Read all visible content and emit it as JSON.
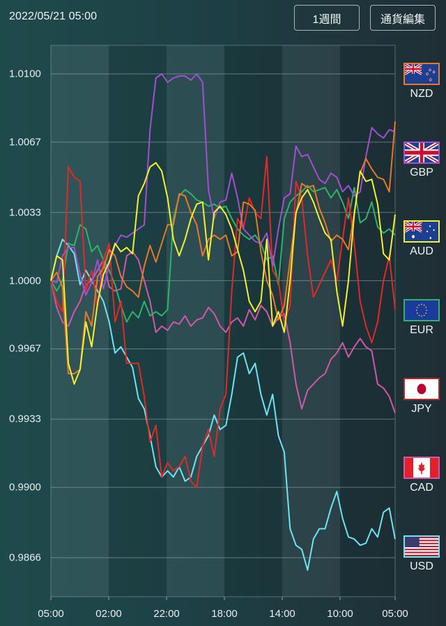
{
  "header": {
    "datetime": "2022/05/21 05:00",
    "period_button": "1週間",
    "edit_button": "通貨編集"
  },
  "legend": [
    {
      "code": "NZD",
      "color": "#e8782a",
      "flag": "nz-flag-icon"
    },
    {
      "code": "GBP",
      "color": "#a24fd0",
      "flag": "uk-flag-icon"
    },
    {
      "code": "AUD",
      "color": "#f4f032",
      "flag": "au-flag-icon"
    },
    {
      "code": "EUR",
      "color": "#2fb36b",
      "flag": "eu-flag-icon"
    },
    {
      "code": "JPY",
      "color": "#e02a2a",
      "flag": "jp-flag-icon"
    },
    {
      "code": "CAD",
      "color": "#d456a6",
      "flag": "ca-flag-icon"
    },
    {
      "code": "USD",
      "color": "#6fe3f2",
      "flag": "us-flag-icon"
    }
  ],
  "chart_data": {
    "type": "line",
    "title": "",
    "xlabel": "",
    "ylabel": "",
    "x_tick_labels": [
      "05:00",
      "02:00",
      "22:00",
      "18:00",
      "14:00",
      "10:00",
      "05:00"
    ],
    "y_tick_labels": [
      "1.0100",
      "1.0067",
      "1.0033",
      "1.0000",
      "0.9967",
      "0.9933",
      "0.9900",
      "0.9866"
    ],
    "y_ticks": [
      1.01,
      1.0067,
      1.0033,
      1.0,
      0.9967,
      0.9933,
      0.99,
      0.9866
    ],
    "ylim": [
      0.9866,
      1.01
    ],
    "grid": true,
    "legend_position": "right",
    "x_points": 60,
    "series": [
      {
        "name": "NZD",
        "color": "#e8782a",
        "values": [
          1.0,
          1.0004,
          0.9997,
          0.9955,
          0.9955,
          0.9957,
          0.9985,
          0.9978,
          1.0002,
          1.0006,
          1.0015,
          1.0012,
          1.0002,
          0.9997,
          0.9995,
          0.9992,
          1.0007,
          1.0017,
          1.0009,
          1.0018,
          1.0027,
          1.0027,
          1.0042,
          1.0041,
          1.0033,
          1.0027,
          1.0012,
          1.002,
          1.0022,
          1.002,
          1.0022,
          1.0012,
          1.0014,
          1.0038,
          1.0037,
          1.0034,
          1.0014,
          1.0,
          0.9993,
          0.9981,
          0.9988,
          1.001,
          1.0032,
          1.0047,
          1.0045,
          1.0046,
          1.0035,
          1.0028,
          1.0019,
          1.0022,
          1.002,
          1.0015,
          1.0033,
          1.0052,
          1.0059,
          1.0054,
          1.005,
          1.0049,
          1.0043,
          1.0077
        ]
      },
      {
        "name": "GBP",
        "color": "#a24fd0",
        "values": [
          1.0,
          0.9999,
          1.0012,
          1.0016,
          1.0016,
          1.0003,
          0.9993,
          0.9999,
          1.001,
          0.9996,
          1.0008,
          1.0017,
          1.0022,
          1.0021,
          1.0023,
          1.0025,
          1.0027,
          1.0073,
          1.0098,
          1.01,
          1.0096,
          1.0098,
          1.0099,
          1.0099,
          1.0097,
          1.01,
          1.0096,
          1.0044,
          1.003,
          1.0038,
          1.0039,
          1.0052,
          1.004,
          1.0025,
          1.0022,
          1.0019,
          1.0018,
          1.0023,
          1.0007,
          1.0025,
          1.004,
          1.0042,
          1.0065,
          1.006,
          1.0061,
          1.0055,
          1.0049,
          1.0047,
          1.0052,
          1.005,
          1.0043,
          1.0046,
          1.0041,
          1.0043,
          1.006,
          1.0074,
          1.0071,
          1.0069,
          1.0073,
          1.0072
        ]
      },
      {
        "name": "AUD",
        "color": "#f4f032",
        "values": [
          1.0,
          1.0012,
          1.001,
          0.996,
          0.995,
          0.9957,
          0.998,
          0.9968,
          0.9989,
          1.0003,
          1.0009,
          1.0018,
          1.0014,
          1.0016,
          1.0013,
          1.0041,
          1.0047,
          1.0055,
          1.0057,
          1.0053,
          1.004,
          1.002,
          1.0012,
          1.002,
          1.003,
          1.0037,
          1.0038,
          1.001,
          1.0033,
          1.0036,
          1.0032,
          1.0025,
          1.0015,
          1.0005,
          0.999,
          0.9985,
          0.999,
          1.002,
          0.9978,
          0.9985,
          0.9975,
          1.0,
          1.0033,
          1.004,
          1.0044,
          1.0038,
          1.003,
          1.0023,
          1.002,
          0.9995,
          0.9978,
          1.0,
          1.0032,
          1.0053,
          1.0048,
          1.0049,
          1.0037,
          1.0013,
          1.001,
          1.0032
        ]
      },
      {
        "name": "EUR",
        "color": "#2fb36b",
        "values": [
          1.0,
          0.9995,
          1.0,
          1.0018,
          1.0017,
          1.0027,
          1.0025,
          1.0014,
          1.0017,
          1.001,
          1.0005,
          0.9998,
          0.9988,
          0.998,
          0.9985,
          0.9982,
          0.999,
          0.9983,
          0.9985,
          0.9983,
          0.9986,
          1.003,
          1.0041,
          1.0044,
          1.0042,
          1.0039,
          1.0038,
          1.0036,
          1.0037,
          1.0035,
          1.0036,
          1.003,
          1.0025,
          1.0022,
          1.002,
          1.0022,
          1.0018,
          1.001,
          1.0012,
          0.9998,
          1.003,
          1.0038,
          1.0041,
          1.0043,
          1.0046,
          1.0043,
          1.0044,
          1.0045,
          1.004,
          1.0044,
          1.0038,
          1.003,
          1.0045,
          1.0028,
          1.003,
          1.0038,
          1.0026,
          1.0023,
          1.0025,
          1.0022
        ]
      },
      {
        "name": "JPY",
        "color": "#e02a2a",
        "values": [
          1.0,
          0.999,
          0.9985,
          1.0055,
          1.005,
          1.0048,
          0.9995,
          1.0005,
          0.9988,
          1.001,
          1.0018,
          0.998,
          0.999,
          0.996,
          0.996,
          0.996,
          0.9944,
          0.9922,
          0.993,
          0.9905,
          0.9912,
          0.9908,
          0.991,
          0.9915,
          0.9903,
          0.99,
          0.992,
          0.9928,
          0.9915,
          0.9938,
          0.9945,
          0.9995,
          1.003,
          1.0025,
          1.004,
          1.0033,
          1.003,
          1.006,
          1.0005,
          1.0,
          0.998,
          0.9988,
          1.0048,
          1.004,
          1.0012,
          0.9992,
          0.9998,
          1.0004,
          1.001,
          1.0,
          1.002,
          1.004,
          1.0018,
          0.999,
          0.9978,
          0.997,
          0.998,
          1.0,
          1.0012,
          0.9986
        ]
      },
      {
        "name": "CAD",
        "color": "#d456a6",
        "values": [
          1.0,
          0.9987,
          0.998,
          0.9978,
          0.9985,
          0.999,
          0.9998,
          1.0,
          1.0005,
          1.001,
          0.9997,
          0.9995,
          0.9996,
          1.0012,
          1.0014,
          1.001,
          1.0,
          0.999,
          0.9975,
          0.9978,
          0.9976,
          0.998,
          0.9979,
          0.9983,
          0.9978,
          0.9981,
          0.9982,
          0.9987,
          0.9984,
          0.9978,
          0.9975,
          0.998,
          0.9982,
          0.9978,
          0.9986,
          0.9981,
          0.9988,
          0.9985,
          0.9978,
          0.9982,
          0.9984,
          0.997,
          0.995,
          0.9938,
          0.9947,
          0.995,
          0.9953,
          0.9955,
          0.9962,
          0.9965,
          0.997,
          0.9963,
          0.9968,
          0.9972,
          0.9968,
          0.9966,
          0.995,
          0.9948,
          0.9944,
          0.9936
        ]
      },
      {
        "name": "USD",
        "color": "#6fe3f2",
        "values": [
          1.0,
          1.0012,
          1.002,
          1.0017,
          1.0013,
          0.9998,
          1.0005,
          1.0,
          0.9995,
          0.999,
          0.998,
          0.9965,
          0.9968,
          0.9963,
          0.9958,
          0.9943,
          0.9938,
          0.9925,
          0.991,
          0.9905,
          0.9908,
          0.9905,
          0.991,
          0.9903,
          0.9905,
          0.9915,
          0.992,
          0.9925,
          0.9935,
          0.9928,
          0.993,
          0.9945,
          0.9963,
          0.9965,
          0.9955,
          0.996,
          0.9945,
          0.9935,
          0.9945,
          0.9925,
          0.9917,
          0.988,
          0.9872,
          0.987,
          0.986,
          0.9875,
          0.988,
          0.988,
          0.989,
          0.9898,
          0.9885,
          0.9876,
          0.9875,
          0.9872,
          0.9873,
          0.988,
          0.9876,
          0.9888,
          0.989,
          0.9875
        ]
      }
    ]
  }
}
